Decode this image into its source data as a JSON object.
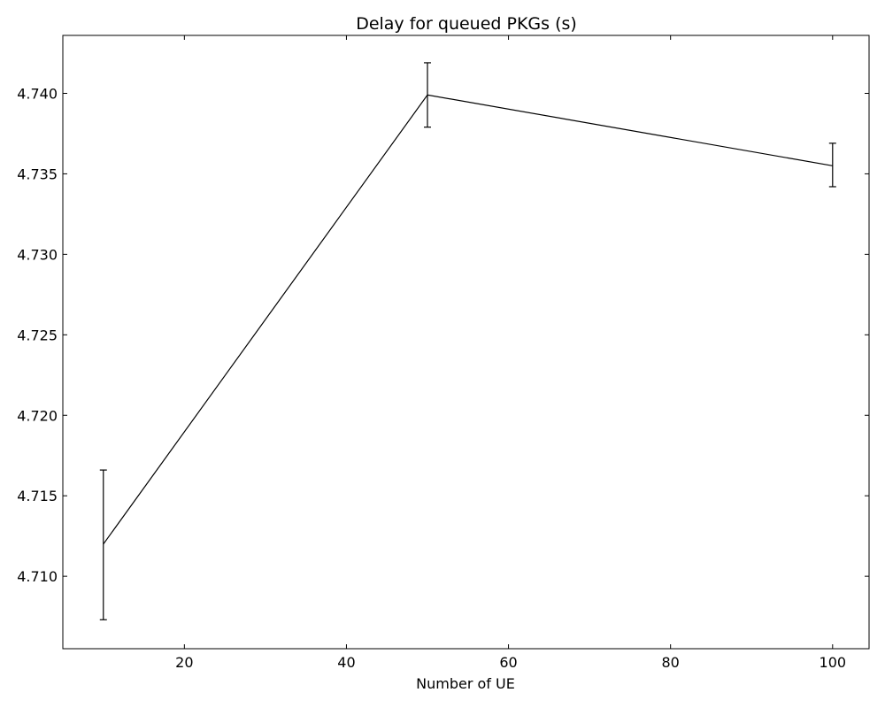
{
  "chart_data": {
    "type": "line",
    "title": "Delay for queued PKGs (s)",
    "xlabel": "Number of UE",
    "ylabel": "",
    "xlim": [
      5,
      104.5
    ],
    "ylim": [
      4.7055,
      4.7436
    ],
    "grid": false,
    "legend": "none",
    "x_ticks": [
      20,
      40,
      60,
      80,
      100
    ],
    "x_tick_labels": [
      "20",
      "40",
      "60",
      "80",
      "100"
    ],
    "y_ticks": [
      4.71,
      4.715,
      4.72,
      4.725,
      4.73,
      4.735,
      4.74
    ],
    "y_tick_labels": [
      "4.710",
      "4.715",
      "4.720",
      "4.725",
      "4.730",
      "4.735",
      "4.740"
    ],
    "series": [
      {
        "x": [
          10,
          50,
          100
        ],
        "y": [
          4.712,
          4.7399,
          4.7355
        ],
        "error_lower": [
          4.7073,
          4.7379,
          4.7342
        ],
        "error_upper": [
          4.7166,
          4.7419,
          4.7369
        ],
        "color": "#000000"
      }
    ]
  }
}
